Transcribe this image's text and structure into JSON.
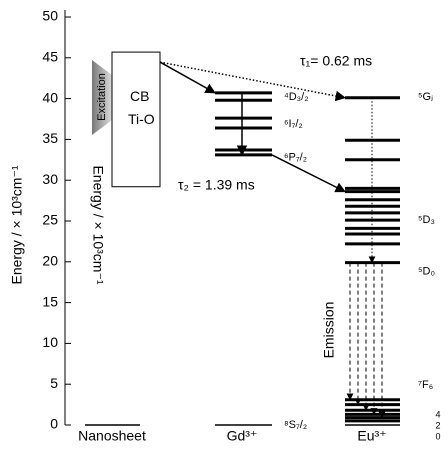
{
  "chart_data": {
    "type": "energy-levels",
    "ylabel": "Energy / × 10³cm⁻¹",
    "ylim": [
      0,
      50
    ],
    "yticks": [
      0,
      5,
      10,
      15,
      20,
      25,
      30,
      35,
      40,
      45,
      50
    ],
    "series": [
      {
        "name": "Nanosheet",
        "values": [
          0
        ]
      },
      {
        "name": "Gd³⁺",
        "values": [
          40.7,
          39.8,
          37.6,
          36.4,
          33.7,
          33.1,
          0
        ]
      },
      {
        "name": "Eu³⁺",
        "values": [
          40.1,
          34.9,
          32.5,
          29.0,
          28.6,
          27.6,
          26.8,
          26.0,
          25.1,
          24.1,
          23.4,
          22.2,
          19.9,
          3.1,
          2.5,
          1.8,
          1.3,
          0.9,
          0.5,
          0
        ]
      }
    ],
    "band": {
      "name": "CB",
      "subname": "Ti-O",
      "bottom": 29.2,
      "top": 45.7
    },
    "level_labels": [
      {
        "series": 1,
        "text": "⁴D₃/₂",
        "value": 40.2
      },
      {
        "series": 1,
        "text": "⁶I₇/₂",
        "value": 36.9
      },
      {
        "series": 1,
        "text": "⁶P₇/₂",
        "value": 32.8
      },
      {
        "series": 1,
        "text": "⁸S₇/₂",
        "value": 0
      },
      {
        "series": 2,
        "text": "⁵Gⱼ",
        "value": 40.2
      },
      {
        "series": 2,
        "text": "⁵D₃",
        "value": 25.1
      },
      {
        "series": 2,
        "text": "⁵D₀",
        "value": 18.8
      },
      {
        "series": 2,
        "text": "⁷F₆",
        "value": 4.9
      }
    ],
    "j_labels": [
      "4",
      "2",
      "0"
    ],
    "annotations": {
      "tau1": "τ₁= 0.62 ms",
      "tau2": "τ₂ = 1.39 ms",
      "excitation": "Excitation",
      "emission": "Emission"
    }
  }
}
